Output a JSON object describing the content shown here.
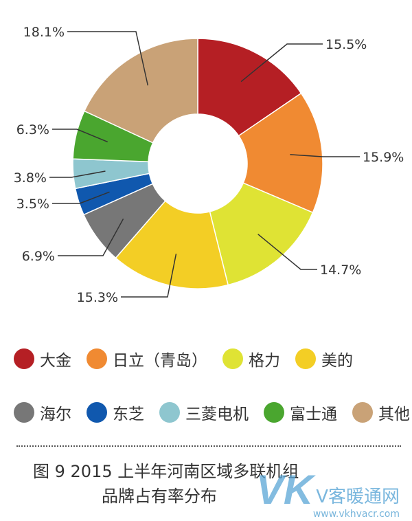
{
  "chart_data": {
    "type": "pie",
    "title": "",
    "slices": [
      {
        "name": "大金",
        "value": 15.5,
        "label": "15.5%",
        "color": "#b51f24"
      },
      {
        "name": "日立（青岛）",
        "value": 15.9,
        "label": "15.9%",
        "color": "#f08a32"
      },
      {
        "name": "格力",
        "value": 14.7,
        "label": "14.7%",
        "color": "#dfe334"
      },
      {
        "name": "美的",
        "value": 15.3,
        "label": "15.3%",
        "color": "#f3ce25"
      },
      {
        "name": "海尔",
        "value": 6.9,
        "label": "6.9%",
        "color": "#777777"
      },
      {
        "name": "东芝",
        "value": 3.5,
        "label": "3.5%",
        "color": "#1058ae"
      },
      {
        "name": "三菱电机",
        "value": 3.8,
        "label": "3.8%",
        "color": "#8ec6cf"
      },
      {
        "name": "富士通",
        "value": 6.3,
        "label": "6.3%",
        "color": "#4aa62f"
      },
      {
        "name": "其他",
        "value": 18.1,
        "label": "18.1%",
        "color": "#c9a277"
      }
    ]
  },
  "caption": {
    "line1": "图 9   2015 上半年河南区域多联机组",
    "line2": "品牌占有率分布"
  },
  "watermark": {
    "logo": "VK",
    "name": "V客暖通网",
    "url": "www.vkhvacr.com"
  }
}
